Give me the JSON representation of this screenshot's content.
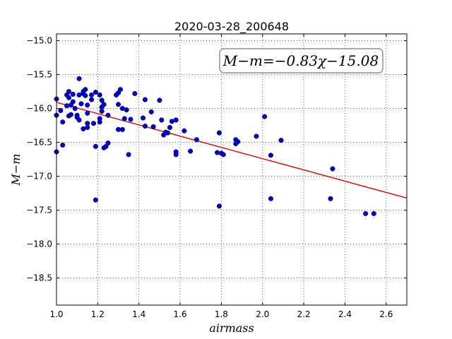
{
  "chart_data": {
    "type": "scatter",
    "title": "2020-03-28_200648",
    "xlabel": "airmass",
    "ylabel": "M−m",
    "xlim": [
      1.0,
      2.7
    ],
    "ylim": [
      -18.9,
      -14.9
    ],
    "y_inverted": true,
    "grid": true,
    "xticks": [
      "1.0",
      "1.2",
      "1.4",
      "1.6",
      "1.8",
      "2.0",
      "2.2",
      "2.4",
      "2.6"
    ],
    "yticks": [
      "−15.0",
      "−15.5",
      "−16.0",
      "−16.5",
      "−17.0",
      "−17.5",
      "−18.0",
      "−18.5"
    ],
    "annotation": "M−m=−0.83χ−15.08",
    "fit": {
      "slope": -0.83,
      "intercept": -15.08,
      "color": "#dd0000"
    },
    "point_color": "#0000c8",
    "points": [
      [
        1.0,
        -15.86
      ],
      [
        1.0,
        -16.1
      ],
      [
        1.0,
        -16.64
      ],
      [
        1.02,
        -16.03
      ],
      [
        1.03,
        -16.2
      ],
      [
        1.03,
        -16.54
      ],
      [
        1.05,
        -15.8
      ],
      [
        1.05,
        -15.96
      ],
      [
        1.06,
        -15.75
      ],
      [
        1.06,
        -16.11
      ],
      [
        1.06,
        -15.84
      ],
      [
        1.07,
        -16.09
      ],
      [
        1.07,
        -15.95
      ],
      [
        1.08,
        -15.9
      ],
      [
        1.08,
        -15.79
      ],
      [
        1.09,
        -16.0
      ],
      [
        1.1,
        -16.1
      ],
      [
        1.1,
        -16.13
      ],
      [
        1.11,
        -15.56
      ],
      [
        1.11,
        -15.8
      ],
      [
        1.11,
        -16.17
      ],
      [
        1.12,
        -15.93
      ],
      [
        1.13,
        -15.78
      ],
      [
        1.13,
        -15.75
      ],
      [
        1.13,
        -16.3
      ],
      [
        1.14,
        -15.72
      ],
      [
        1.14,
        -15.81
      ],
      [
        1.15,
        -16.07
      ],
      [
        1.15,
        -15.95
      ],
      [
        1.15,
        -16.28
      ],
      [
        1.15,
        -16.22
      ],
      [
        1.17,
        -15.8
      ],
      [
        1.17,
        -15.87
      ],
      [
        1.18,
        -16.22
      ],
      [
        1.19,
        -15.76
      ],
      [
        1.19,
        -16.56
      ],
      [
        1.19,
        -17.35
      ],
      [
        1.21,
        -15.8
      ],
      [
        1.21,
        -16.15
      ],
      [
        1.21,
        -16.2
      ],
      [
        1.22,
        -15.98
      ],
      [
        1.22,
        -16.04
      ],
      [
        1.22,
        -15.88
      ],
      [
        1.23,
        -16.58
      ],
      [
        1.23,
        -15.94
      ],
      [
        1.24,
        -16.56
      ],
      [
        1.25,
        -16.1
      ],
      [
        1.25,
        -16.51
      ],
      [
        1.29,
        -15.8
      ],
      [
        1.3,
        -15.77
      ],
      [
        1.3,
        -15.94
      ],
      [
        1.3,
        -16.31
      ],
      [
        1.31,
        -15.72
      ],
      [
        1.32,
        -16.0
      ],
      [
        1.32,
        -16.31
      ],
      [
        1.33,
        -16.15
      ],
      [
        1.34,
        -16.02
      ],
      [
        1.35,
        -16.68
      ],
      [
        1.36,
        -16.16
      ],
      [
        1.38,
        -15.78
      ],
      [
        1.42,
        -16.14
      ],
      [
        1.43,
        -16.26
      ],
      [
        1.43,
        -15.87
      ],
      [
        1.46,
        -16.05
      ],
      [
        1.47,
        -16.27
      ],
      [
        1.5,
        -15.88
      ],
      [
        1.51,
        -16.17
      ],
      [
        1.52,
        -16.39
      ],
      [
        1.53,
        -16.35
      ],
      [
        1.54,
        -16.36
      ],
      [
        1.55,
        -16.28
      ],
      [
        1.56,
        -16.19
      ],
      [
        1.58,
        -16.17
      ],
      [
        1.58,
        -16.64
      ],
      [
        1.58,
        -16.68
      ],
      [
        1.62,
        -16.33
      ],
      [
        1.65,
        -16.63
      ],
      [
        1.68,
        -16.46
      ],
      [
        1.78,
        -16.65
      ],
      [
        1.79,
        -16.36
      ],
      [
        1.79,
        -17.44
      ],
      [
        1.8,
        -16.66
      ],
      [
        1.81,
        -16.68
      ],
      [
        1.87,
        -16.52
      ],
      [
        1.87,
        -16.46
      ],
      [
        1.88,
        -16.49
      ],
      [
        1.97,
        -16.41
      ],
      [
        2.01,
        -16.12
      ],
      [
        2.04,
        -16.69
      ],
      [
        2.04,
        -17.33
      ],
      [
        2.09,
        -16.47
      ],
      [
        2.33,
        -17.33
      ],
      [
        2.34,
        -16.89
      ],
      [
        2.5,
        -17.55
      ],
      [
        2.54,
        -17.55
      ]
    ]
  }
}
